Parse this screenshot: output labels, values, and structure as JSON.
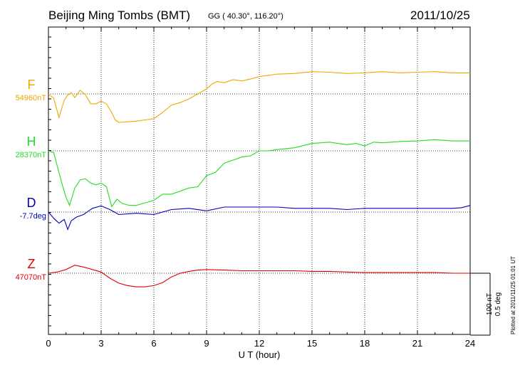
{
  "header": {
    "title": "Beijing Ming Tombs (BMT)",
    "coords": "GG ( 40.30°, 116.20°)",
    "date": "2011/10/25"
  },
  "plotted_note": "Plotted at 2011/11/25 01:01 UT",
  "chart_data": {
    "type": "line",
    "xlabel": "U T (hour)",
    "xlim": [
      0,
      24
    ],
    "xticks": [
      "0",
      "3",
      "6",
      "9",
      "12",
      "15",
      "18",
      "21",
      "24"
    ],
    "scale_bar": {
      "nt_label": "100 nT",
      "deg_label": "0.5 deg",
      "nt": 100,
      "deg": 0.5
    },
    "grid": true,
    "series": [
      {
        "name": "F",
        "baseline_label": "54960nT",
        "baseline": 54960,
        "unit": "nT",
        "color": "#f0a800",
        "x": [
          0,
          0.3,
          0.6,
          0.9,
          1.1,
          1.3,
          1.5,
          1.8,
          2.1,
          2.4,
          2.7,
          3.0,
          3.3,
          3.6,
          3.8,
          4.0,
          4.5,
          5.0,
          5.5,
          6.0,
          6.5,
          7.0,
          7.5,
          8.0,
          8.5,
          9.0,
          9.3,
          9.6,
          10.0,
          10.5,
          11.0,
          11.5,
          12.0,
          12.5,
          13.0,
          14.0,
          15.0,
          16.0,
          17.0,
          18.0,
          19.0,
          20.0,
          21.0,
          22.0,
          23.0,
          24.0
        ],
        "y": [
          54960,
          54953,
          54922,
          54950,
          54958,
          54962,
          54954,
          54966,
          54959,
          54944,
          54944,
          54948,
          54944,
          54930,
          54918,
          54914,
          54915,
          54916,
          54918,
          54920,
          54930,
          54942,
          54946,
          54952,
          54960,
          54968,
          54976,
          54980,
          54978,
          54983,
          54981,
          54984,
          54988,
          54990,
          54992,
          54993,
          54996,
          54995,
          54993,
          54994,
          54996,
          54994,
          54995,
          54996,
          54994,
          54994
        ]
      },
      {
        "name": "H",
        "baseline_label": "28370nT",
        "baseline": 28370,
        "unit": "nT",
        "color": "#22dd22",
        "x": [
          0,
          0.3,
          0.6,
          0.8,
          1.0,
          1.2,
          1.5,
          1.8,
          2.1,
          2.4,
          2.7,
          3.0,
          3.3,
          3.6,
          3.9,
          4.2,
          4.6,
          5.0,
          5.5,
          6.0,
          6.5,
          7.0,
          7.5,
          8.0,
          8.5,
          9.0,
          9.5,
          10.0,
          10.5,
          11.0,
          11.5,
          12.0,
          12.5,
          13.0,
          14.0,
          15.0,
          16.0,
          17.0,
          17.5,
          18.0,
          18.5,
          19.0,
          20.0,
          21.0,
          22.0,
          23.0,
          24.0
        ],
        "y": [
          28370,
          28367,
          28335,
          28314,
          28295,
          28282,
          28310,
          28323,
          28325,
          28318,
          28315,
          28318,
          28312,
          28280,
          28292,
          28285,
          28282,
          28282,
          28286,
          28290,
          28300,
          28300,
          28305,
          28310,
          28312,
          28330,
          28335,
          28350,
          28355,
          28360,
          28362,
          28370,
          28370,
          28372,
          28375,
          28382,
          28384,
          28380,
          28382,
          28378,
          28384,
          28383,
          28385,
          28386,
          28388,
          28386,
          28386
        ]
      },
      {
        "name": "D",
        "baseline_label": "-7.7deg",
        "baseline": -7.7,
        "unit": "deg",
        "color": "#0000bb",
        "x": [
          0,
          0.3,
          0.6,
          0.9,
          1.1,
          1.3,
          1.6,
          2.0,
          2.5,
          3.0,
          3.5,
          4.0,
          5.0,
          6.0,
          6.5,
          7.0,
          8.0,
          9.0,
          10.0,
          11.0,
          12.0,
          13.0,
          14.0,
          15.0,
          16.0,
          17.0,
          18.0,
          19.0,
          20.0,
          21.0,
          22.0,
          23.0,
          23.5,
          24.0
        ],
        "y": [
          -7.7,
          -7.75,
          -7.79,
          -7.76,
          -7.84,
          -7.77,
          -7.74,
          -7.72,
          -7.67,
          -7.65,
          -7.68,
          -7.72,
          -7.71,
          -7.72,
          -7.7,
          -7.68,
          -7.67,
          -7.69,
          -7.66,
          -7.66,
          -7.66,
          -7.66,
          -7.67,
          -7.67,
          -7.67,
          -7.68,
          -7.67,
          -7.67,
          -7.67,
          -7.67,
          -7.67,
          -7.67,
          -7.665,
          -7.647
        ]
      },
      {
        "name": "Z",
        "baseline_label": "47070nT",
        "baseline": 47070,
        "unit": "nT",
        "color": "#dd0000",
        "x": [
          0,
          0.5,
          1.0,
          1.5,
          2.0,
          2.5,
          3.0,
          3.5,
          4.0,
          4.5,
          5.0,
          5.5,
          6.0,
          6.5,
          7.0,
          7.5,
          8.0,
          8.5,
          9.0,
          10.0,
          11.0,
          12.0,
          13.0,
          14.0,
          15.0,
          16.0,
          17.0,
          18.0,
          19.0,
          20.0,
          21.0,
          22.0,
          23.0,
          24.0
        ],
        "y": [
          47070,
          47072,
          47076,
          47083,
          47080,
          47076,
          47072,
          47062,
          47054,
          47050,
          47048,
          47048,
          47050,
          47055,
          47064,
          47070,
          47073,
          47075,
          47076,
          47075,
          47074,
          47074,
          47074,
          47074,
          47073,
          47073,
          47072,
          47071,
          47071,
          47071,
          47071,
          47071,
          47070,
          47070
        ]
      }
    ]
  }
}
